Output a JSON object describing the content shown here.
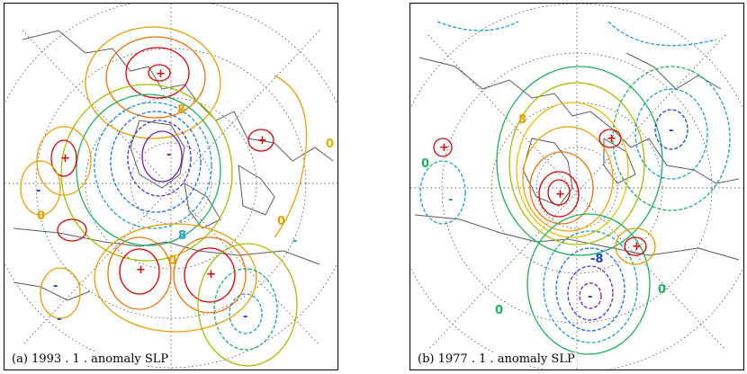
{
  "panels": [
    {
      "id": "a",
      "caption": "(a) 1993 . 1 . anomaly SLP",
      "contour_labels": [
        {
          "text": "+",
          "color": "#e00000"
        },
        {
          "text": "-",
          "color": "#6a1fb5"
        },
        {
          "text": "0",
          "color": "#d9b400"
        },
        {
          "text": "8",
          "color": "#e8a000"
        },
        {
          "text": "+",
          "color": "#e00000"
        },
        {
          "text": "-",
          "color": "#1f3fd0"
        },
        {
          "text": "+",
          "color": "#e00000"
        },
        {
          "text": "-",
          "color": "#1f3fd0"
        },
        {
          "text": "0",
          "color": "#e8a000"
        },
        {
          "text": "+",
          "color": "#e00000"
        },
        {
          "text": "+",
          "color": "#e00000"
        },
        {
          "text": "-",
          "color": "#1f3fd0"
        },
        {
          "text": "-",
          "color": "#1f3fd0"
        },
        {
          "text": "0",
          "color": "#e8a000"
        },
        {
          "text": "0",
          "color": "#e8a000"
        },
        {
          "text": "8",
          "color": "#1fa0c0"
        },
        {
          "text": "-",
          "color": "#1fa0c0"
        }
      ]
    },
    {
      "id": "b",
      "caption": "(b) 1977 . 1 . anomaly SLP",
      "contour_labels": [
        {
          "text": "+",
          "color": "#e00000"
        },
        {
          "text": "+",
          "color": "#e00000"
        },
        {
          "text": "8",
          "color": "#e8a000"
        },
        {
          "text": "+",
          "color": "#e00000"
        },
        {
          "text": "-",
          "color": "#1f3fd0"
        },
        {
          "text": "-",
          "color": "#1fa0c0"
        },
        {
          "text": "+",
          "color": "#e00000"
        },
        {
          "text": "-8",
          "color": "#1f3fd0"
        },
        {
          "text": "-",
          "color": "#1f3fd0"
        },
        {
          "text": "0",
          "color": "#1fb060"
        },
        {
          "text": "0",
          "color": "#1fb060"
        },
        {
          "text": "0",
          "color": "#1fb060"
        }
      ]
    }
  ],
  "colors": {
    "positive_high": "#e00000",
    "positive_mid": "#e8a000",
    "zero": "#1fb060",
    "negative_mid": "#1fa0c0",
    "negative_low": "#6a1fb5",
    "coastline": "#5a5a5a",
    "grid": "#333333"
  }
}
